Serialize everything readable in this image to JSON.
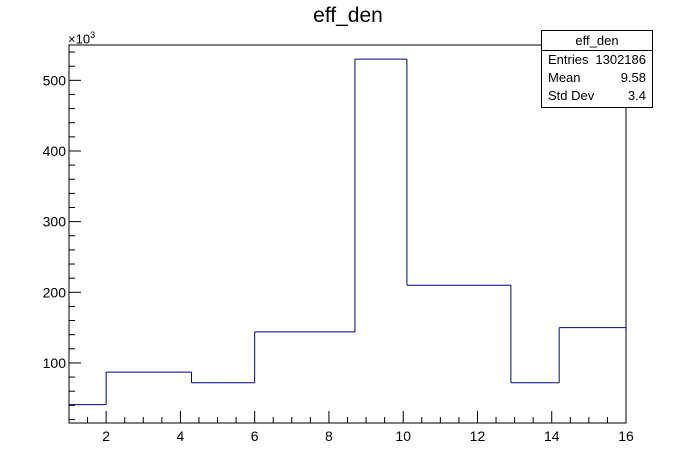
{
  "chart_data": {
    "type": "histogram",
    "title": "eff_den",
    "xlim": [
      1,
      16
    ],
    "ylim_scaled": [
      15,
      550
    ],
    "y_multiplier_label": "×10",
    "y_multiplier_exponent": "3",
    "x_ticks": [
      "2",
      "4",
      "6",
      "8",
      "10",
      "12",
      "14",
      "16"
    ],
    "y_ticks": [
      "100",
      "200",
      "300",
      "400",
      "500"
    ],
    "bins": [
      {
        "x0": 1.0,
        "x1": 2.0,
        "value": 41
      },
      {
        "x0": 2.0,
        "x1": 4.3,
        "value": 87
      },
      {
        "x0": 4.3,
        "x1": 6.0,
        "value": 72
      },
      {
        "x0": 6.0,
        "x1": 8.7,
        "value": 144
      },
      {
        "x0": 8.7,
        "x1": 10.1,
        "value": 530
      },
      {
        "x0": 10.1,
        "x1": 12.9,
        "value": 210
      },
      {
        "x0": 12.9,
        "x1": 14.2,
        "value": 72
      },
      {
        "x0": 14.2,
        "x1": 16.0,
        "value": 150
      }
    ],
    "line_color": "#000080",
    "stats": {
      "name": "eff_den",
      "rows": [
        {
          "label": "Entries",
          "value": "1302186"
        },
        {
          "label": "Mean",
          "value": "9.58"
        },
        {
          "label": "Std Dev",
          "value": "3.4"
        }
      ]
    }
  }
}
